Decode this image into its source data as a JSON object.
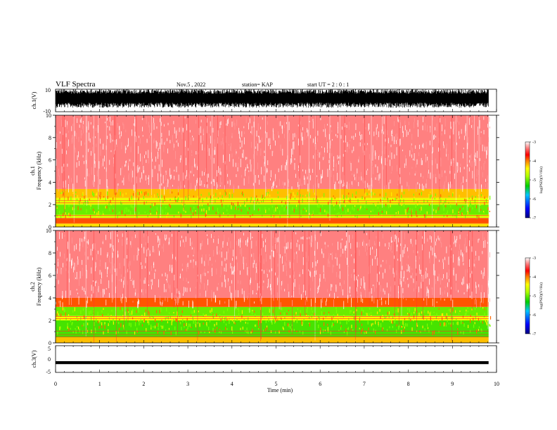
{
  "header": {
    "title": "VLF Spectra",
    "date": "Nov.5 , 2022",
    "station": "station= KAP",
    "start": "start UT = 2 : 0 : 1"
  },
  "chart_data": [
    {
      "type": "line",
      "name": "ch1-waveform",
      "ylabel": "ch.1(V)",
      "ylim": [
        -10,
        10
      ],
      "xlim": [
        0,
        10
      ],
      "ytick_labels": [
        "10",
        "-10"
      ],
      "x_end": 9.82,
      "color": "#000000",
      "description_level": "dense waveform spanning about -6 to +10 V"
    },
    {
      "type": "heatmap",
      "name": "ch1-spectrogram",
      "ylabel": "ch.1 Frequency (kHz)",
      "ylim": [
        0,
        10
      ],
      "xlim": [
        0,
        10
      ],
      "yticks": [
        0,
        2,
        4,
        6,
        8,
        10
      ],
      "x_end": 9.82,
      "colorbar": {
        "label": "log(PSD)(V²/Hz)",
        "ticks": [
          -3,
          -4,
          -5,
          -6,
          -7
        ],
        "range": [
          -7,
          -3
        ]
      },
      "bands": [
        {
          "from": 0.0,
          "to": 0.3,
          "psd": -4.3
        },
        {
          "from": 0.3,
          "to": 0.8,
          "psd": -3.9
        },
        {
          "from": 0.8,
          "to": 1.1,
          "psd": -4.6
        },
        {
          "from": 1.1,
          "to": 2.0,
          "psd": -5.0
        },
        {
          "from": 2.0,
          "to": 2.6,
          "psd": -4.5
        },
        {
          "from": 2.6,
          "to": 3.4,
          "psd": -4.2
        },
        {
          "from": 3.4,
          "to": 10.0,
          "psd": -3.3
        }
      ]
    },
    {
      "type": "heatmap",
      "name": "ch2-spectrogram",
      "ylabel": "ch.2 Frequency (kHz)",
      "ylim": [
        0,
        10
      ],
      "xlim": [
        0,
        10
      ],
      "yticks": [
        0,
        2,
        4,
        6,
        8,
        10
      ],
      "x_end": 9.82,
      "colorbar": {
        "label": "log(PSD)(V²/Hz)",
        "ticks": [
          -3,
          -4,
          -5,
          -6,
          -7
        ],
        "range": [
          -7,
          -3
        ]
      },
      "bands": [
        {
          "from": 0.0,
          "to": 0.5,
          "psd": -4.2
        },
        {
          "from": 0.5,
          "to": 2.0,
          "psd": -5.1
        },
        {
          "from": 2.0,
          "to": 2.4,
          "psd": -4.4
        },
        {
          "from": 2.4,
          "to": 3.2,
          "psd": -5.0
        },
        {
          "from": 3.2,
          "to": 4.0,
          "psd": -3.9
        },
        {
          "from": 4.0,
          "to": 10.0,
          "psd": -3.3
        }
      ]
    },
    {
      "type": "line",
      "name": "ch3-waveform",
      "ylabel": "ch.3(V)",
      "ylim": [
        -5,
        5
      ],
      "xlim": [
        0,
        10
      ],
      "ytick_labels": [
        "5",
        "0",
        "-5"
      ],
      "x_end": 9.82,
      "level": [
        -1.9,
        -0.8
      ],
      "color": "#000000"
    }
  ],
  "xaxis": {
    "label": "Time (min)",
    "range": [
      0,
      10
    ],
    "ticks": [
      "0",
      "1",
      "2",
      "3",
      "4",
      "5",
      "6",
      "7",
      "8",
      "9",
      "10"
    ]
  }
}
